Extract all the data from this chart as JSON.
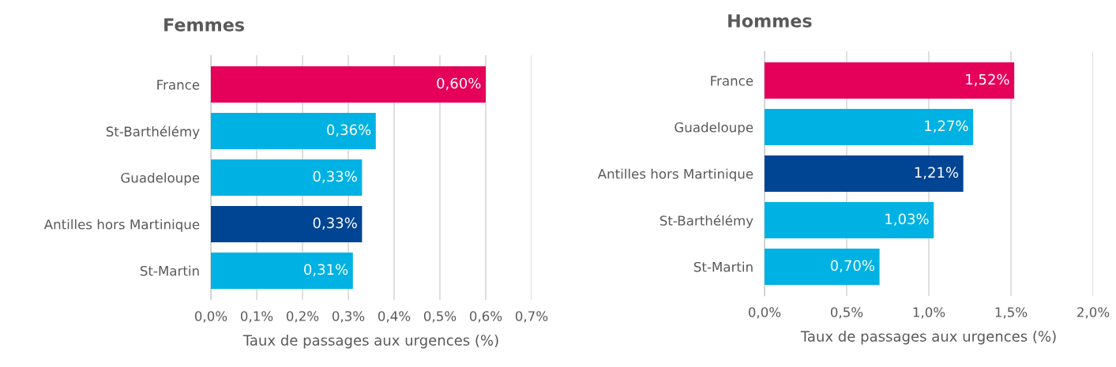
{
  "chart_data": [
    {
      "type": "bar",
      "orientation": "horizontal",
      "title": "Femmes",
      "xlabel": "Taux de passages aux urgences (%)",
      "categories": [
        "France",
        "St-Barthélémy",
        "Guadeloupe",
        "Antilles hors Martinique",
        "St-Martin"
      ],
      "values": [
        0.6,
        0.36,
        0.33,
        0.33,
        0.31
      ],
      "colors": [
        "#e5005a",
        "#00b2e3",
        "#00b2e3",
        "#004494",
        "#00b2e3"
      ],
      "value_labels": [
        "0,60%",
        "0,36%",
        "0,33%",
        "0,33%",
        "0,31%"
      ],
      "xlim": [
        0,
        0.7
      ],
      "xticks": [
        {
          "value": 0,
          "label": "0,0%"
        },
        {
          "value": 0.1,
          "label": "0,1%"
        },
        {
          "value": 0.2,
          "label": "0,2%"
        },
        {
          "value": 0.3,
          "label": "0,3%"
        },
        {
          "value": 0.4,
          "label": "0,4%"
        },
        {
          "value": 0.5,
          "label": "0,5%"
        },
        {
          "value": 0.6,
          "label": "0,6%"
        },
        {
          "value": 0.7,
          "label": "0,7%"
        }
      ],
      "grid": "x",
      "legend": false
    },
    {
      "type": "bar",
      "orientation": "horizontal",
      "title": "Hommes",
      "xlabel": "Taux de passages aux urgences (%)",
      "categories": [
        "France",
        "Guadeloupe",
        "Antilles hors Martinique",
        "St-Barthélémy",
        "St-Martin"
      ],
      "values": [
        1.52,
        1.27,
        1.21,
        1.03,
        0.7
      ],
      "colors": [
        "#e5005a",
        "#00b2e3",
        "#004494",
        "#00b2e3",
        "#00b2e3"
      ],
      "value_labels": [
        "1,52%",
        "1,27%",
        "1,21%",
        "1,03%",
        "0,70%"
      ],
      "xlim": [
        0,
        2.0
      ],
      "xticks": [
        {
          "value": 0,
          "label": "0,0%"
        },
        {
          "value": 0.5,
          "label": "0,5%"
        },
        {
          "value": 1.0,
          "label": "1,0%"
        },
        {
          "value": 1.5,
          "label": "1,5%"
        },
        {
          "value": 2.0,
          "label": "2,0%"
        }
      ],
      "grid": "x",
      "legend": false
    }
  ]
}
